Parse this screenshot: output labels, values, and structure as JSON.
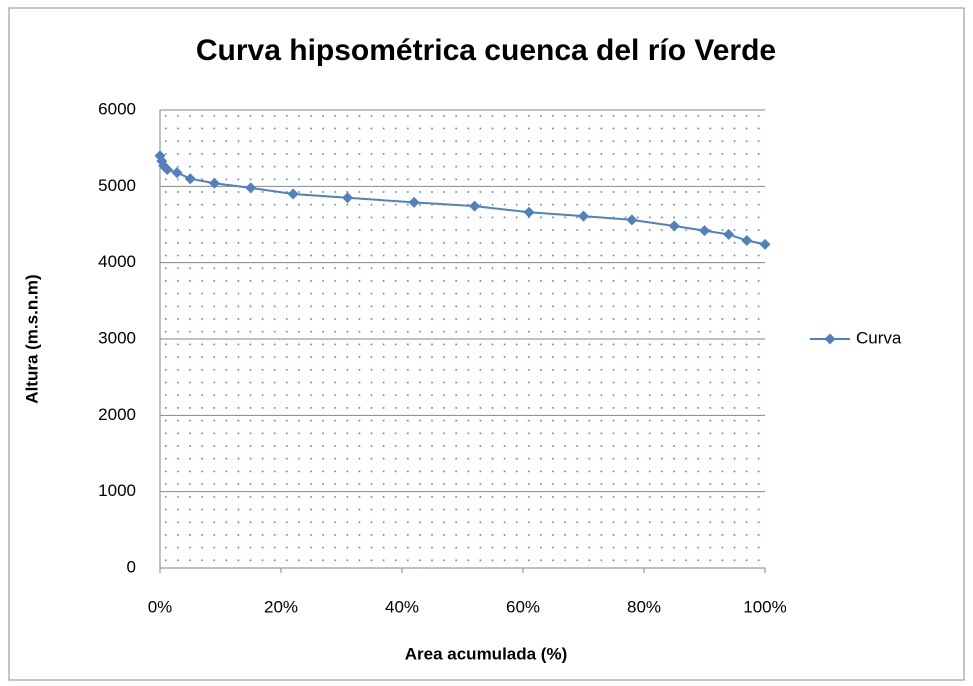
{
  "chart_data": {
    "type": "line",
    "title": "Curva hipsométrica cuenca del río Verde",
    "x_label": "Area acumulada  (%)",
    "y_label": "Altura (m.s.n.m)",
    "x": [
      0,
      0.3,
      0.6,
      1.2,
      2.8,
      5,
      9,
      15,
      22,
      31,
      42,
      52,
      61,
      70,
      78,
      85,
      90,
      94,
      97,
      100
    ],
    "series": [
      {
        "name": "Curva",
        "color": "#4f81bd",
        "values": [
          5400,
          5330,
          5270,
          5220,
          5180,
          5100,
          5040,
          4980,
          4900,
          4850,
          4790,
          4740,
          4660,
          4610,
          4560,
          4480,
          4420,
          4370,
          4290,
          4240
        ]
      }
    ],
    "xlim": [
      0,
      100
    ],
    "xticks": [
      {
        "value": 0,
        "label": "0%"
      },
      {
        "value": 20,
        "label": "20%"
      },
      {
        "value": 40,
        "label": "40%"
      },
      {
        "value": 60,
        "label": "60%"
      },
      {
        "value": 80,
        "label": "80%"
      },
      {
        "value": 100,
        "label": "100%"
      }
    ],
    "ylim": [
      0,
      6000
    ],
    "yticks": [
      0,
      1000,
      2000,
      3000,
      4000,
      5000,
      6000
    ],
    "grid": true,
    "legend": "right"
  }
}
